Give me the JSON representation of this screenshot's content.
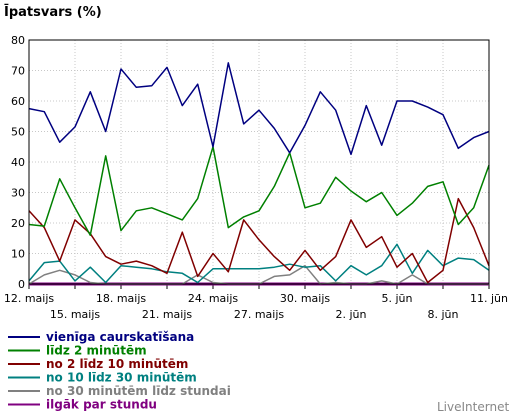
{
  "chart_data": {
    "type": "line",
    "title": "",
    "ylabel": "Īpatsvars (%)",
    "xlabel": "",
    "ylim": [
      0,
      80
    ],
    "yticks": [
      "0",
      "10",
      "20",
      "30",
      "40",
      "50",
      "60",
      "70",
      "80"
    ],
    "grid": true,
    "legend_position": "bottom-left",
    "x_tick_labels_row1": [
      "12. maijs",
      "18. maijs",
      "24. maijs",
      "30. maijs",
      "5. jūn",
      "11. jūn"
    ],
    "x_tick_labels_row2": [
      "15. maijs",
      "21. maijs",
      "27. maijs",
      "2. jūn",
      "8. jūn"
    ],
    "x": [
      "12. maijs",
      "13. maijs",
      "14. maijs",
      "15. maijs",
      "16. maijs",
      "17. maijs",
      "18. maijs",
      "19. maijs",
      "20. maijs",
      "21. maijs",
      "22. maijs",
      "23. maijs",
      "24. maijs",
      "25. maijs",
      "26. maijs",
      "27. maijs",
      "28. maijs",
      "29. maijs",
      "30. maijs",
      "31. maijs",
      "1. jūn",
      "2. jūn",
      "3. jūn",
      "4. jūn",
      "5. jūn",
      "6. jūn",
      "7. jūn",
      "8. jūn",
      "9. jūn",
      "10. jūn",
      "11. jūn"
    ],
    "series": [
      {
        "name": "vienīga caurskatīšana",
        "color": "#000080",
        "values": [
          57.5,
          56.5,
          46.5,
          51.5,
          63,
          50,
          70.5,
          64.5,
          65,
          71,
          58.5,
          65.5,
          45,
          72.5,
          52.5,
          57,
          51,
          43,
          52,
          63,
          57,
          42.5,
          58.5,
          45.5,
          60,
          60,
          58,
          55.5,
          44.5,
          48,
          50
        ]
      },
      {
        "name": "līdz 2 minūtēm",
        "color": "#008000",
        "values": [
          19.5,
          19,
          34.5,
          25,
          16,
          42,
          17.5,
          24,
          25,
          23,
          21,
          28,
          45,
          18.5,
          22,
          24,
          32,
          43,
          25,
          26.5,
          35,
          30.5,
          27,
          30,
          22.5,
          26.5,
          32,
          33.5,
          19.5,
          25,
          39
        ]
      },
      {
        "name": "no 2 līdz 10 minūtēm",
        "color": "#800000",
        "values": [
          24,
          18.5,
          7.5,
          21,
          16.5,
          9,
          6.5,
          7.5,
          6,
          3.5,
          17,
          2.5,
          10,
          4,
          21,
          14.5,
          9,
          4.5,
          11,
          4.5,
          9,
          21,
          12,
          15.5,
          5.5,
          10,
          0.5,
          4.5,
          28,
          18.5,
          6
        ]
      },
      {
        "name": "no 10 līdz 30 minūtēm",
        "color": "#008080",
        "values": [
          1,
          7,
          7.5,
          1,
          5.5,
          0.5,
          6,
          5.5,
          5,
          4,
          3.5,
          0.5,
          5,
          5,
          5,
          5,
          5.5,
          6.5,
          5.5,
          6,
          1,
          6,
          3,
          6,
          13,
          3.5,
          11,
          6,
          8.5,
          8,
          4.5
        ]
      },
      {
        "name": "no 30 minūtēm līdz stundai",
        "color": "#808080",
        "values": [
          0,
          3,
          4.5,
          3,
          0.5,
          0,
          0,
          0,
          0,
          0,
          0,
          3,
          0.5,
          0,
          0,
          0,
          2.5,
          3,
          6,
          0,
          0.5,
          0,
          0,
          1,
          0,
          3,
          0,
          0,
          0,
          0,
          0
        ]
      },
      {
        "name": "ilgāk par stundu",
        "color": "#800080",
        "values": [
          0,
          0,
          0,
          0,
          0,
          0,
          0,
          0,
          0,
          0,
          0,
          0,
          0,
          0,
          0,
          0,
          0,
          0,
          0,
          0,
          0,
          0,
          0,
          0,
          0,
          0,
          0,
          0,
          0,
          0,
          0
        ]
      }
    ]
  },
  "branding": "LiveInternet"
}
